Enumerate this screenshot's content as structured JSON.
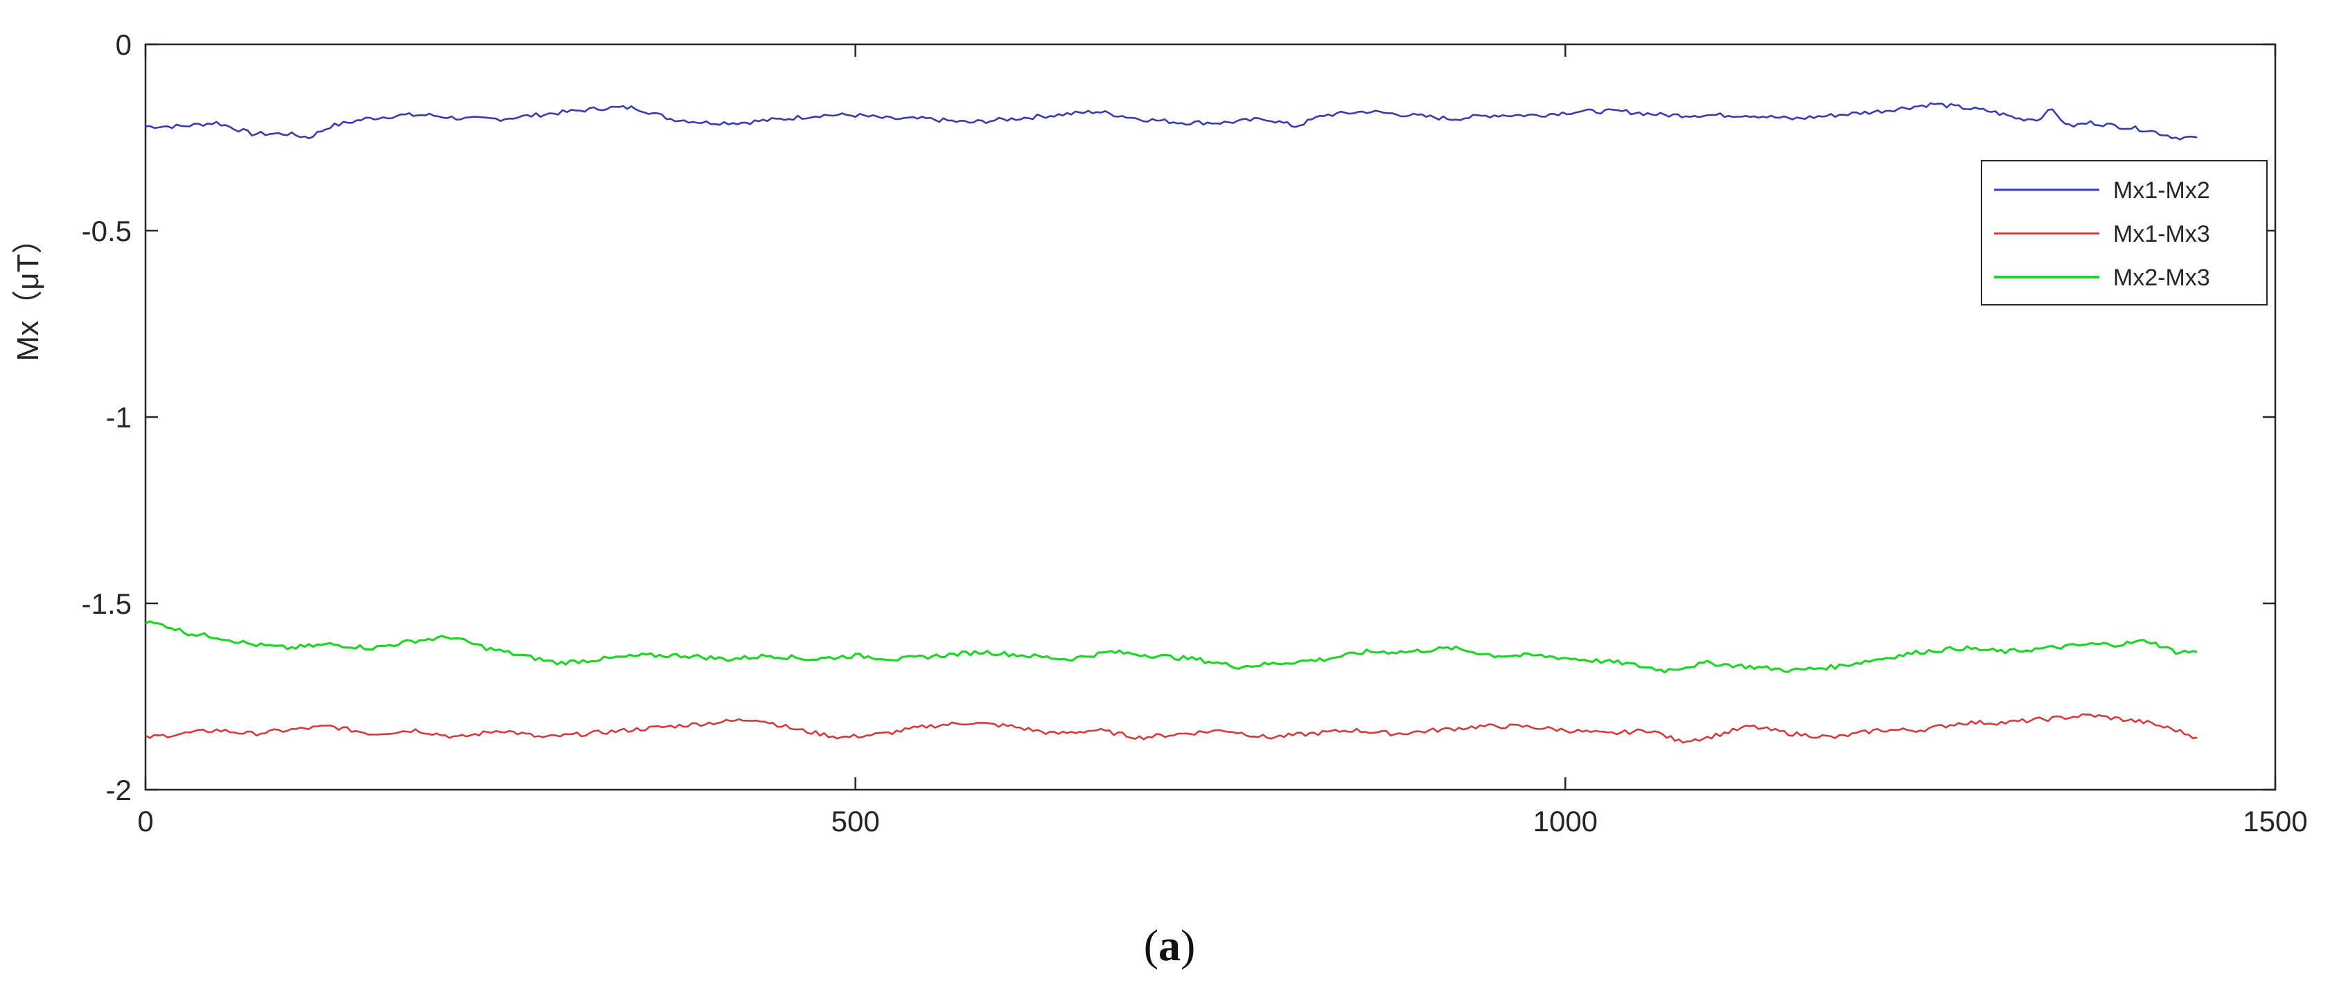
{
  "chart_data": {
    "type": "line",
    "title": "",
    "xlabel": "",
    "ylabel": "Mx（μT）",
    "xlim": [
      0,
      1500
    ],
    "ylim": [
      -2,
      0
    ],
    "xticks": [
      0,
      500,
      1000,
      1500
    ],
    "yticks": [
      0,
      -0.5,
      -1,
      -1.5,
      -2
    ],
    "xtick_labels": [
      "0",
      "500",
      "1000",
      "1500"
    ],
    "ytick_labels": [
      "0",
      "-0.5",
      "-1",
      "-1.5",
      "-2"
    ],
    "grid": false,
    "legend_position": "top-right",
    "series": [
      {
        "name": "Mx1-Mx2",
        "color": "#3b3bb0",
        "x": [
          0,
          25,
          50,
          75,
          100,
          115,
          130,
          155,
          180,
          200,
          225,
          250,
          275,
          300,
          325,
          345,
          370,
          395,
          420,
          450,
          475,
          500,
          525,
          550,
          580,
          610,
          640,
          670,
          700,
          730,
          760,
          790,
          810,
          830,
          860,
          890,
          920,
          950,
          980,
          1010,
          1040,
          1070,
          1100,
          1130,
          1160,
          1190,
          1220,
          1240,
          1260,
          1280,
          1300,
          1320,
          1335,
          1340,
          1355,
          1370,
          1390,
          1410,
          1430,
          1445
        ],
        "y": [
          -0.22,
          -0.22,
          -0.21,
          -0.24,
          -0.24,
          -0.25,
          -0.22,
          -0.2,
          -0.19,
          -0.19,
          -0.2,
          -0.2,
          -0.19,
          -0.18,
          -0.17,
          -0.17,
          -0.2,
          -0.21,
          -0.21,
          -0.2,
          -0.19,
          -0.19,
          -0.2,
          -0.2,
          -0.21,
          -0.2,
          -0.19,
          -0.18,
          -0.2,
          -0.21,
          -0.21,
          -0.2,
          -0.22,
          -0.19,
          -0.18,
          -0.19,
          -0.2,
          -0.19,
          -0.19,
          -0.18,
          -0.18,
          -0.19,
          -0.19,
          -0.19,
          -0.2,
          -0.19,
          -0.18,
          -0.17,
          -0.16,
          -0.17,
          -0.18,
          -0.2,
          -0.2,
          -0.17,
          -0.22,
          -0.21,
          -0.22,
          -0.23,
          -0.25,
          -0.25
        ]
      },
      {
        "name": "Mx1-Mx3",
        "color": "#d13b3b",
        "x": [
          0,
          25,
          50,
          75,
          100,
          130,
          160,
          190,
          220,
          250,
          280,
          310,
          340,
          370,
          400,
          430,
          460,
          490,
          520,
          550,
          580,
          610,
          640,
          670,
          700,
          730,
          760,
          790,
          820,
          850,
          880,
          910,
          940,
          970,
          1000,
          1030,
          1060,
          1080,
          1100,
          1130,
          1160,
          1190,
          1220,
          1250,
          1280,
          1310,
          1340,
          1370,
          1390,
          1410,
          1430,
          1445
        ],
        "y": [
          -1.86,
          -1.85,
          -1.84,
          -1.85,
          -1.84,
          -1.83,
          -1.85,
          -1.84,
          -1.86,
          -1.84,
          -1.86,
          -1.85,
          -1.84,
          -1.83,
          -1.82,
          -1.81,
          -1.84,
          -1.86,
          -1.85,
          -1.83,
          -1.82,
          -1.83,
          -1.85,
          -1.84,
          -1.86,
          -1.85,
          -1.84,
          -1.86,
          -1.85,
          -1.84,
          -1.85,
          -1.84,
          -1.83,
          -1.83,
          -1.84,
          -1.85,
          -1.84,
          -1.87,
          -1.86,
          -1.83,
          -1.85,
          -1.86,
          -1.84,
          -1.84,
          -1.82,
          -1.82,
          -1.81,
          -1.8,
          -1.81,
          -1.82,
          -1.84,
          -1.86
        ]
      },
      {
        "name": "Mx2-Mx3",
        "color": "#22d42a",
        "x": [
          0,
          15,
          30,
          50,
          75,
          100,
          130,
          160,
          190,
          215,
          240,
          265,
          290,
          320,
          350,
          380,
          410,
          440,
          470,
          500,
          530,
          560,
          590,
          620,
          650,
          680,
          710,
          740,
          770,
          800,
          830,
          860,
          890,
          920,
          950,
          980,
          1010,
          1040,
          1070,
          1100,
          1130,
          1160,
          1190,
          1220,
          1250,
          1280,
          1310,
          1340,
          1370,
          1390,
          1410,
          1430,
          1445
        ],
        "y": [
          -1.55,
          -1.56,
          -1.58,
          -1.59,
          -1.61,
          -1.62,
          -1.61,
          -1.62,
          -1.6,
          -1.59,
          -1.62,
          -1.64,
          -1.66,
          -1.65,
          -1.64,
          -1.64,
          -1.65,
          -1.64,
          -1.65,
          -1.64,
          -1.65,
          -1.64,
          -1.63,
          -1.64,
          -1.65,
          -1.63,
          -1.64,
          -1.65,
          -1.67,
          -1.66,
          -1.65,
          -1.63,
          -1.63,
          -1.62,
          -1.64,
          -1.64,
          -1.65,
          -1.66,
          -1.68,
          -1.66,
          -1.67,
          -1.68,
          -1.67,
          -1.65,
          -1.63,
          -1.62,
          -1.63,
          -1.62,
          -1.61,
          -1.61,
          -1.6,
          -1.63,
          -1.63
        ]
      }
    ]
  },
  "caption": {
    "open": "(",
    "letter": "a",
    "close": ")"
  }
}
